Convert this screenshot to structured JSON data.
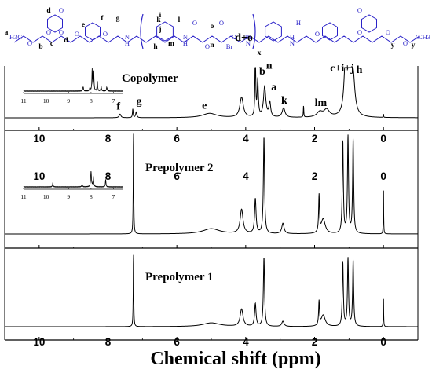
{
  "chart_data": {
    "type": "line",
    "xlabel": "Chemical shift (ppm)",
    "x_tick_labels": [
      "10",
      "8",
      "6",
      "4",
      "2",
      "0"
    ],
    "xlim": [
      11,
      -1
    ],
    "reversed_x": true,
    "grid": false,
    "panels": [
      {
        "title": "Copolymer",
        "peaks": [
          {
            "x": 7.65,
            "h": 0.05,
            "w": 0.03
          },
          {
            "x": 7.28,
            "h": 0.12,
            "w": 0.012
          },
          {
            "x": 7.18,
            "h": 0.08,
            "w": 0.02
          },
          {
            "x": 5.05,
            "h": 0.06,
            "w": 0.25
          },
          {
            "x": 4.12,
            "h": 0.28,
            "w": 0.06
          },
          {
            "x": 3.72,
            "h": 1.0,
            "w": 0.012
          },
          {
            "x": 3.65,
            "h": 0.5,
            "w": 0.02
          },
          {
            "x": 3.45,
            "h": 0.42,
            "w": 0.04
          },
          {
            "x": 3.3,
            "h": 0.2,
            "w": 0.03
          },
          {
            "x": 2.9,
            "h": 0.13,
            "w": 0.05
          },
          {
            "x": 2.32,
            "h": 0.16,
            "w": 0.008
          },
          {
            "x": 1.85,
            "h": 0.07,
            "w": 0.1
          },
          {
            "x": 1.65,
            "h": 0.1,
            "w": 0.1
          },
          {
            "x": 1.1,
            "h": 0.78,
            "w": 0.05
          },
          {
            "x": 0.98,
            "h": 0.72,
            "w": 0.05
          },
          {
            "x": 0.88,
            "h": 0.5,
            "w": 0.06
          },
          {
            "x": 0.0,
            "h": 0.05,
            "w": 0.006
          }
        ],
        "peak_labels": [
          {
            "text": "f",
            "x": 7.7
          },
          {
            "text": "g",
            "x": 7.1
          },
          {
            "text": "e",
            "x": 5.2
          },
          {
            "text": "d+o",
            "x": 4.05
          },
          {
            "text": "b",
            "x": 3.52
          },
          {
            "text": "n",
            "x": 3.32
          },
          {
            "text": "a",
            "x": 3.18
          },
          {
            "text": "k",
            "x": 2.88
          },
          {
            "text": "lm",
            "x": 1.82
          },
          {
            "text": "c+i+j",
            "x": 1.2
          },
          {
            "text": "h",
            "x": 0.7
          }
        ],
        "inset": {
          "x_tick_labels": [
            "11",
            "10",
            "9",
            "8",
            "7"
          ],
          "xlim": [
            11,
            6.6
          ],
          "peaks": [
            {
              "x": 8.35,
              "h": 0.2,
              "w": 0.02
            },
            {
              "x": 8.05,
              "h": 0.15,
              "w": 0.02
            },
            {
              "x": 7.95,
              "h": 1.0,
              "w": 0.015
            },
            {
              "x": 7.88,
              "h": 0.9,
              "w": 0.015
            },
            {
              "x": 7.72,
              "h": 0.45,
              "w": 0.015
            },
            {
              "x": 7.55,
              "h": 0.2,
              "w": 0.02
            },
            {
              "x": 7.3,
              "h": 0.18,
              "w": 0.02
            }
          ]
        }
      },
      {
        "title": "Prepolymer 2",
        "peaks": [
          {
            "x": 7.26,
            "h": 1.0,
            "w": 0.008
          },
          {
            "x": 5.0,
            "h": 0.05,
            "w": 0.3
          },
          {
            "x": 4.12,
            "h": 0.23,
            "w": 0.05
          },
          {
            "x": 3.72,
            "h": 0.33,
            "w": 0.025
          },
          {
            "x": 3.47,
            "h": 0.92,
            "w": 0.02
          },
          {
            "x": 2.92,
            "h": 0.1,
            "w": 0.04
          },
          {
            "x": 1.87,
            "h": 0.35,
            "w": 0.015
          },
          {
            "x": 1.75,
            "h": 0.14,
            "w": 0.07
          },
          {
            "x": 1.18,
            "h": 0.88,
            "w": 0.018
          },
          {
            "x": 1.03,
            "h": 0.92,
            "w": 0.018
          },
          {
            "x": 0.88,
            "h": 0.9,
            "w": 0.018
          },
          {
            "x": 0.0,
            "h": 0.45,
            "w": 0.006
          }
        ],
        "inset": {
          "x_tick_labels": [
            "11",
            "10",
            "9",
            "8",
            "7"
          ],
          "xlim": [
            11,
            6.6
          ],
          "peaks": [
            {
              "x": 9.7,
              "h": 0.25,
              "w": 0.015
            },
            {
              "x": 8.4,
              "h": 0.15,
              "w": 0.02
            },
            {
              "x": 8.0,
              "h": 0.9,
              "w": 0.02
            },
            {
              "x": 7.9,
              "h": 0.55,
              "w": 0.02
            },
            {
              "x": 7.35,
              "h": 0.45,
              "w": 0.015
            }
          ]
        }
      },
      {
        "title": "Prepolymer 1",
        "peaks": [
          {
            "x": 7.26,
            "h": 1.0,
            "w": 0.008
          },
          {
            "x": 5.0,
            "h": 0.05,
            "w": 0.3
          },
          {
            "x": 4.12,
            "h": 0.23,
            "w": 0.05
          },
          {
            "x": 3.72,
            "h": 0.3,
            "w": 0.025
          },
          {
            "x": 3.47,
            "h": 0.92,
            "w": 0.02
          },
          {
            "x": 2.92,
            "h": 0.07,
            "w": 0.04
          },
          {
            "x": 1.87,
            "h": 0.32,
            "w": 0.015
          },
          {
            "x": 1.75,
            "h": 0.15,
            "w": 0.07
          },
          {
            "x": 1.18,
            "h": 0.85,
            "w": 0.018
          },
          {
            "x": 1.03,
            "h": 0.9,
            "w": 0.018
          },
          {
            "x": 0.88,
            "h": 0.88,
            "w": 0.018
          },
          {
            "x": 0.0,
            "h": 0.4,
            "w": 0.006
          }
        ]
      }
    ]
  },
  "structure": {
    "atom_labels": [
      "a",
      "b",
      "c",
      "d",
      "d",
      "e",
      "f",
      "g",
      "k",
      "i",
      "j",
      "l",
      "h",
      "m",
      "n",
      "o",
      "y",
      "y",
      "x"
    ],
    "element_text": [
      "H3C",
      "O",
      "O",
      "O",
      "O",
      "O",
      "O",
      "N",
      "H",
      "N",
      "H",
      "O",
      "O",
      "O",
      "O",
      "Br",
      "Br",
      "N",
      "H",
      "N",
      "H",
      "O",
      "O",
      "O",
      "O",
      "O",
      "O",
      "CH3"
    ]
  }
}
